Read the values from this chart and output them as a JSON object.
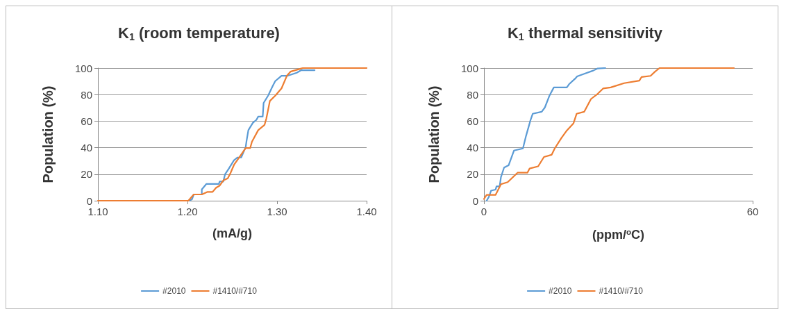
{
  "chart_data": [
    {
      "type": "line",
      "title": "K$_{1}$ (room temperature)",
      "xlabel": "(mA/g)",
      "ylabel": "Population (%)",
      "xlim": [
        1.1,
        1.4
      ],
      "xticks": [
        {
          "value": 1.1,
          "label": "1.10"
        },
        {
          "value": 1.2,
          "label": "1.20"
        },
        {
          "value": 1.3,
          "label": "1.30"
        },
        {
          "value": 1.4,
          "label": "1.40"
        }
      ],
      "ylim": [
        0,
        100
      ],
      "yticks": [
        0,
        20,
        40,
        60,
        80,
        100
      ],
      "grid": "y",
      "legend": "bottom",
      "marker": "none",
      "line_style": "solid",
      "series": [
        {
          "name": "#2010",
          "color": "#5b9bd5",
          "x": [
            1.202,
            1.205,
            1.207,
            1.216,
            1.216,
            1.221,
            1.235,
            1.236,
            1.24,
            1.242,
            1.246,
            1.252,
            1.256,
            1.26,
            1.265,
            1.266,
            1.268,
            1.273,
            1.277,
            1.279,
            1.284,
            1.285,
            1.29,
            1.295,
            1.298,
            1.305,
            1.312,
            1.322,
            1.327,
            1.342
          ],
          "values": [
            0,
            1,
            4.7,
            4.7,
            8.5,
            12.6,
            12.6,
            14.5,
            14.5,
            20,
            24,
            30.6,
            32.6,
            32.6,
            40.5,
            45.3,
            53.2,
            58.7,
            61,
            63.4,
            63.4,
            73.7,
            79.2,
            86.3,
            90.2,
            94.2,
            94.2,
            96.5,
            98.4,
            98.4
          ]
        },
        {
          "name": "#1410/#710",
          "color": "#ed7d31",
          "x": [
            1.1,
            1.201,
            1.207,
            1.216,
            1.222,
            1.228,
            1.232,
            1.236,
            1.24,
            1.245,
            1.248,
            1.252,
            1.257,
            1.265,
            1.27,
            1.272,
            1.279,
            1.286,
            1.288,
            1.292,
            1.298,
            1.305,
            1.311,
            1.315,
            1.327,
            1.329,
            1.4
          ],
          "values": [
            0,
            0,
            4.7,
            4.7,
            6.6,
            6.6,
            9.8,
            11.4,
            15.3,
            16.9,
            20.8,
            27.1,
            31.9,
            39.7,
            39.7,
            44.5,
            53.2,
            57.1,
            61.8,
            75.2,
            79.2,
            84.7,
            94.2,
            97.3,
            99.7,
            100,
            100
          ]
        }
      ]
    },
    {
      "type": "line",
      "title": "K$_{1}$ thermal sensitivity",
      "xlabel": "(ppm/$^{o}$C)",
      "ylabel": "Population (%)",
      "xlim": [
        0,
        60
      ],
      "xticks": [
        0,
        60
      ],
      "ylim": [
        0,
        100
      ],
      "yticks": [
        0,
        20,
        40,
        60,
        80,
        100
      ],
      "grid": "y",
      "legend": "bottom",
      "marker": "none",
      "line_style": "solid",
      "series": [
        {
          "name": "#2010",
          "color": "#5b9bd5",
          "x": [
            0.6,
            1.1,
            1.6,
            2.6,
            2.8,
            3.5,
            3.8,
            4.5,
            5.5,
            6.7,
            8.7,
            9.4,
            10.4,
            10.9,
            12.9,
            13.6,
            14.6,
            15.6,
            18.5,
            19,
            20.5,
            20.8,
            22.4,
            24.4,
            25.4,
            27.1
          ],
          "values": [
            0,
            2.9,
            7.6,
            8.4,
            10.8,
            10.8,
            17.9,
            25,
            26.7,
            37.8,
            39.4,
            48.9,
            60.8,
            65.6,
            67.1,
            70.3,
            79,
            85.4,
            85.4,
            87.8,
            92.5,
            93.7,
            95.7,
            98.1,
            99.7,
            100
          ]
        },
        {
          "name": "#1410/#710",
          "color": "#ed7d31",
          "x": [
            0,
            0.6,
            2.6,
            3.8,
            5.3,
            7.5,
            9.7,
            10.2,
            12.1,
            13.4,
            15.1,
            15.8,
            17.3,
            18.5,
            20,
            20.7,
            22.4,
            23.9,
            25.4,
            26.6,
            28.3,
            31.3,
            34.7,
            35.2,
            37.2,
            38.2,
            39.2,
            55.8
          ],
          "values": [
            1.3,
            4.4,
            4.4,
            12.4,
            14,
            21.1,
            21.1,
            24.3,
            25.9,
            33,
            34.6,
            39.4,
            47.3,
            52.9,
            58.4,
            65.6,
            67.1,
            76.7,
            80.6,
            84.6,
            85.4,
            88.6,
            90.5,
            93.3,
            94.1,
            97.3,
            100,
            100
          ]
        }
      ]
    }
  ]
}
